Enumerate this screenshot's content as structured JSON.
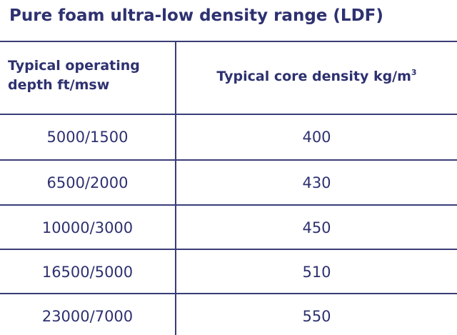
{
  "title": "Pure foam ultra-low density range (LDF)",
  "table": {
    "header": {
      "depth_line1": "Typical operating",
      "depth_line2": "depth ft/msw",
      "density": "Typical core density kg/m",
      "density_sup": "3"
    },
    "rows": [
      {
        "depth": "5000/1500",
        "density": "400"
      },
      {
        "depth": "6500/2000",
        "density": "430"
      },
      {
        "depth": "10000/3000",
        "density": "450"
      },
      {
        "depth": "16500/5000",
        "density": "510"
      },
      {
        "depth": "23000/7000",
        "density": "550"
      }
    ]
  },
  "colors": {
    "text": "#2e3170",
    "rule": "#3a3d78",
    "background": "#ffffff"
  }
}
